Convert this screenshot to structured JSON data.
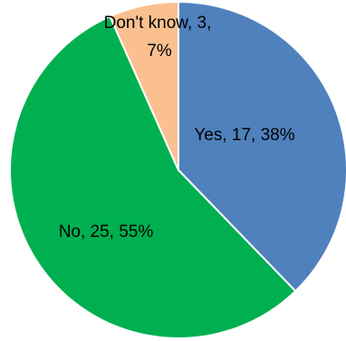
{
  "chart_data": {
    "type": "pie",
    "start_angle": "top (12 o'clock), clockwise",
    "slices": [
      {
        "label": "Yes",
        "value": 17,
        "percent": "38%",
        "color": "#4F81BD",
        "data_label": "Yes, 17, 38%"
      },
      {
        "label": "No",
        "value": 25,
        "percent": "55%",
        "color": "#00B050",
        "data_label": "No, 25, 55%"
      },
      {
        "label": "Don't know",
        "value": 3,
        "percent": "7%",
        "color": "#FAC090",
        "data_label_lines": [
          "Don't know, 3,",
          "7%"
        ]
      }
    ],
    "title": "",
    "legend": "none"
  }
}
